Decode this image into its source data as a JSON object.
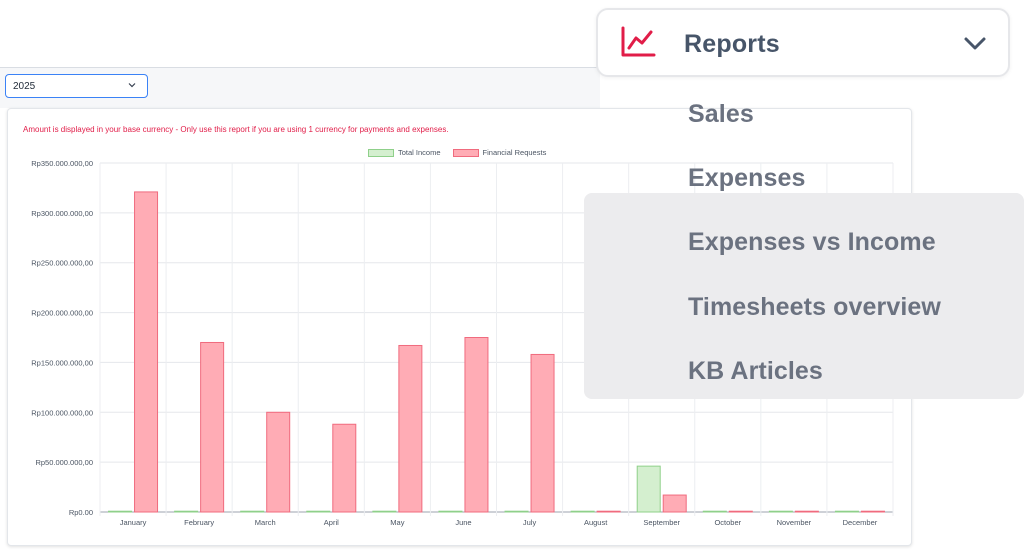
{
  "filter": {
    "year": "2025"
  },
  "notice": "Amount is displayed in your base currency - Only use this report if you are using 1 currency for payments and expenses.",
  "legend": [
    {
      "label": "Total Income",
      "fill": "#d4efcf",
      "stroke": "#8fd08a"
    },
    {
      "label": "Financial Requests",
      "fill": "#ffacb5",
      "stroke": "#f06b7e"
    }
  ],
  "chart_data": {
    "type": "bar",
    "categories": [
      "January",
      "February",
      "March",
      "April",
      "May",
      "June",
      "July",
      "August",
      "September",
      "October",
      "November",
      "December"
    ],
    "series": [
      {
        "name": "Total Income",
        "values": [
          0,
          0,
          0,
          0,
          0,
          0,
          0,
          0,
          46000000,
          0,
          0,
          0
        ]
      },
      {
        "name": "Financial Requests",
        "values": [
          321000000,
          170000000,
          100000000,
          88000000,
          167000000,
          175000000,
          158000000,
          0,
          17000000,
          0,
          0,
          0
        ]
      }
    ],
    "ylim": [
      0,
      350000000
    ],
    "yticks": [
      "Rp0.00",
      "Rp50.000.000,00",
      "Rp100.000.000,00",
      "Rp150.000.000,00",
      "Rp200.000.000,00",
      "Rp250.000.000,00",
      "Rp300.000.000,00",
      "Rp350.000.000,00"
    ],
    "grid": true,
    "legend_position": "top"
  },
  "menu": {
    "title": "Reports",
    "icon": "line-chart-icon",
    "accent": "#e11d48",
    "items": [
      "Sales",
      "Expenses",
      "Expenses vs Income",
      "Timesheets overview",
      "KB Articles"
    ]
  }
}
